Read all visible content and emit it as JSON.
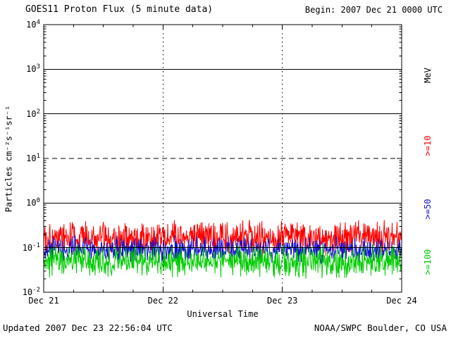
{
  "title": "GOES11 Proton Flux (5 minute data)",
  "begin_label": "Begin: 2007 Dec 21 0000 UTC",
  "footer": {
    "updated": "Updated 2007 Dec 23 22:56:04 UTC",
    "credit": "NOAA/SWPC Boulder, CO USA"
  },
  "chart_data": {
    "type": "line",
    "title": "GOES11 Proton Flux (5 minute data)",
    "xlabel": "Universal Time",
    "ylabel": "Particles cm⁻²s⁻¹sr⁻¹",
    "right_axis_unit": "MeV",
    "x_tick_labels": [
      "Dec 21",
      "Dec 22",
      "Dec 23",
      "Dec 24"
    ],
    "y_axis": {
      "scale": "log",
      "exponent_min": -2,
      "exponent_max": 4,
      "tick_exponents": [
        4,
        3,
        2,
        1,
        0,
        -1,
        -2
      ]
    },
    "time_span_days": 3,
    "points_per_day": 288,
    "grid": {
      "solid_h_lines_exp": [
        3,
        2,
        0,
        -1
      ],
      "dashed_h_lines_exp": [
        1
      ],
      "dotted_v_lines_days": [
        1,
        2
      ]
    },
    "series": [
      {
        "name": ">=10",
        "color": "#ff0000",
        "baseline_flux": 0.17,
        "log_half_range": 0.45,
        "min_flux": 0.065,
        "max_flux": 0.55,
        "seed": 101
      },
      {
        "name": ">=50",
        "color": "#1111cc",
        "baseline_flux": 0.09,
        "log_half_range": 0.33,
        "min_flux": 0.04,
        "max_flux": 0.2,
        "seed": 202
      },
      {
        "name": ">=100",
        "color": "#00cc00",
        "baseline_flux": 0.049,
        "log_half_range": 0.4,
        "min_flux": 0.017,
        "max_flux": 0.12,
        "seed": 303
      }
    ]
  }
}
